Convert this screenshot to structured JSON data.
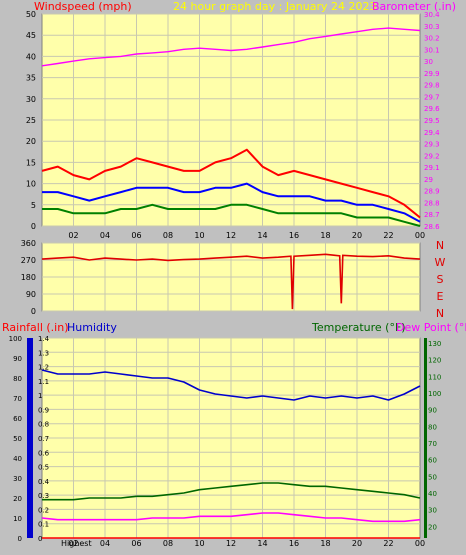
{
  "colors": {
    "background": "#c0c0c0",
    "plot_bg": "#ffffaa",
    "grid": "#c8c8b0",
    "wind_gust": "#ff0000",
    "wind_avg": "#0000ff",
    "wind_low": "#008000",
    "barometer": "#ff00ff",
    "title": "#ffff00",
    "direction": "#e00000",
    "rain": "#ff0000",
    "humidity": "#0000cc",
    "temperature": "#006600",
    "dewpoint": "#ff00ff",
    "label_text": "#000000"
  },
  "labels": {
    "windspeed": "Windspeed (mph)",
    "title": "24 hour graph day : January 24 2023",
    "barometer": "Barometer (.in)",
    "rainfall": "Rainfall (.in)",
    "humidity": "Humidity",
    "temperature": "Temperature (°F)",
    "dewpoint": "Dew Point (°F)",
    "highest": "Highest"
  },
  "chart_data": [
    {
      "type": "line",
      "id": "wind-barometer",
      "x_ticks": [
        "02",
        "04",
        "06",
        "08",
        "10",
        "12",
        "14",
        "16",
        "18",
        "20",
        "22",
        "00"
      ],
      "y_left_ticks": [
        0,
        5,
        10,
        15,
        20,
        25,
        30,
        35,
        40,
        45,
        50
      ],
      "y_left_range": [
        0,
        50
      ],
      "y_right_ticks": [
        "28.6",
        "28.7",
        "28.8",
        "28.9",
        "29",
        "29.1",
        "29.2",
        "29.3",
        "29.4",
        "29.5",
        "29.6",
        "29.7",
        "29.8",
        "29.9",
        "30",
        "30.1",
        "30.2",
        "30.3",
        "30.4"
      ],
      "y_right_range": [
        28.6,
        30.4
      ],
      "series": [
        {
          "key": "gust",
          "color": "wind_gust",
          "x": [
            0,
            1,
            2,
            3,
            4,
            5,
            6,
            7,
            8,
            9,
            10,
            11,
            12,
            13,
            14,
            15,
            16,
            17,
            18,
            19,
            20,
            21,
            22,
            23,
            24
          ],
          "values": [
            13,
            14,
            12,
            11,
            13,
            14,
            16,
            15,
            14,
            13,
            13,
            15,
            16,
            18,
            14,
            12,
            13,
            12,
            11,
            10,
            9,
            8,
            7,
            5,
            2
          ]
        },
        {
          "key": "average",
          "color": "wind_avg",
          "x": [
            0,
            1,
            2,
            3,
            4,
            5,
            6,
            7,
            8,
            9,
            10,
            11,
            12,
            13,
            14,
            15,
            16,
            17,
            18,
            19,
            20,
            21,
            22,
            23,
            24
          ],
          "values": [
            8,
            8,
            7,
            6,
            7,
            8,
            9,
            9,
            9,
            8,
            8,
            9,
            9,
            10,
            8,
            7,
            7,
            7,
            6,
            6,
            5,
            5,
            4,
            3,
            1
          ]
        },
        {
          "key": "low",
          "color": "wind_low",
          "x": [
            0,
            1,
            2,
            3,
            4,
            5,
            6,
            7,
            8,
            9,
            10,
            11,
            12,
            13,
            14,
            15,
            16,
            17,
            18,
            19,
            20,
            21,
            22,
            23,
            24
          ],
          "values": [
            4,
            4,
            3,
            3,
            3,
            4,
            4,
            5,
            4,
            4,
            4,
            4,
            5,
            5,
            4,
            3,
            3,
            3,
            3,
            3,
            2,
            2,
            2,
            1,
            0
          ]
        },
        {
          "key": "barometer",
          "color": "barometer",
          "axis": "right",
          "x": [
            0,
            1,
            2,
            3,
            4,
            5,
            6,
            7,
            8,
            9,
            10,
            11,
            12,
            13,
            14,
            15,
            16,
            17,
            18,
            19,
            20,
            21,
            22,
            23,
            24
          ],
          "values": [
            29.96,
            29.98,
            30.0,
            30.02,
            30.03,
            30.04,
            30.06,
            30.07,
            30.08,
            30.1,
            30.11,
            30.1,
            30.09,
            30.1,
            30.12,
            30.14,
            30.16,
            30.19,
            30.21,
            30.23,
            30.25,
            30.27,
            30.28,
            30.27,
            30.26
          ]
        }
      ]
    },
    {
      "type": "line",
      "id": "wind-direction",
      "x_ticks": [
        "02",
        "04",
        "06",
        "08",
        "10",
        "12",
        "14",
        "16",
        "18",
        "20",
        "22",
        "00"
      ],
      "y_left_ticks": [
        0,
        90,
        180,
        270,
        360
      ],
      "y_left_range": [
        0,
        360
      ],
      "y_right_ticks": [
        "N",
        "W",
        "S",
        "E",
        "N"
      ],
      "series": [
        {
          "key": "direction",
          "color": "direction",
          "x": [
            0,
            1,
            2,
            3,
            4,
            5,
            6,
            7,
            8,
            9,
            10,
            11,
            12,
            13,
            14,
            15,
            15.8,
            15.9,
            16,
            17,
            18,
            18.9,
            19,
            19.1,
            20,
            21,
            22,
            23,
            24
          ],
          "values": [
            275,
            280,
            285,
            270,
            280,
            275,
            270,
            275,
            268,
            272,
            275,
            280,
            285,
            290,
            280,
            285,
            290,
            10,
            290,
            295,
            300,
            292,
            40,
            295,
            290,
            288,
            292,
            280,
            275
          ]
        }
      ]
    },
    {
      "type": "line",
      "id": "rain-humidity-temperature",
      "x_ticks": [
        "02",
        "04",
        "06",
        "08",
        "10",
        "12",
        "14",
        "16",
        "18",
        "20",
        "22",
        "00"
      ],
      "humidity_ticks": [
        0,
        10,
        20,
        30,
        40,
        50,
        60,
        70,
        80,
        90,
        100
      ],
      "humidity_range": [
        0,
        100
      ],
      "rain_ticks": [
        "0",
        "0.1",
        "0.2",
        "0.3",
        "0.4",
        "0.5",
        "0.6",
        "0.7",
        "0.8",
        "0.9",
        "1",
        "1.1",
        "1.2",
        "1.3",
        "1.4"
      ],
      "rain_range": [
        0,
        1.4
      ],
      "temp_ticks": [
        20,
        30,
        40,
        50,
        60,
        70,
        80,
        90,
        100,
        110,
        120,
        130
      ],
      "temp_range": [
        13,
        133
      ],
      "series": [
        {
          "key": "humidity",
          "color": "humidity",
          "axis": "humidity",
          "x": [
            0,
            1,
            2,
            3,
            4,
            5,
            6,
            7,
            8,
            9,
            10,
            11,
            12,
            13,
            14,
            15,
            16,
            17,
            18,
            19,
            20,
            21,
            22,
            23,
            24
          ],
          "values": [
            84,
            82,
            82,
            82,
            83,
            82,
            81,
            80,
            80,
            78,
            74,
            72,
            71,
            70,
            71,
            70,
            69,
            71,
            70,
            71,
            70,
            71,
            69,
            72,
            76
          ]
        },
        {
          "key": "temperature",
          "color": "temperature",
          "axis": "temp",
          "x": [
            0,
            1,
            2,
            3,
            4,
            5,
            6,
            7,
            8,
            9,
            10,
            11,
            12,
            13,
            14,
            15,
            16,
            17,
            18,
            19,
            20,
            21,
            22,
            23,
            24
          ],
          "values": [
            36,
            36,
            36,
            37,
            37,
            37,
            38,
            38,
            39,
            40,
            42,
            43,
            44,
            45,
            46,
            46,
            45,
            44,
            44,
            43,
            42,
            41,
            40,
            39,
            37
          ]
        },
        {
          "key": "dewpoint",
          "color": "dewpoint",
          "axis": "temp",
          "x": [
            0,
            1,
            2,
            3,
            4,
            5,
            6,
            7,
            8,
            9,
            10,
            11,
            12,
            13,
            14,
            15,
            16,
            17,
            18,
            19,
            20,
            21,
            22,
            23,
            24
          ],
          "values": [
            25,
            24,
            24,
            24,
            24,
            24,
            24,
            25,
            25,
            25,
            26,
            26,
            26,
            27,
            28,
            28,
            27,
            26,
            25,
            25,
            24,
            23,
            23,
            23,
            24
          ]
        },
        {
          "key": "rain",
          "color": "rain",
          "axis": "rain",
          "x": [
            0,
            24
          ],
          "values": [
            0,
            0
          ]
        }
      ]
    }
  ]
}
